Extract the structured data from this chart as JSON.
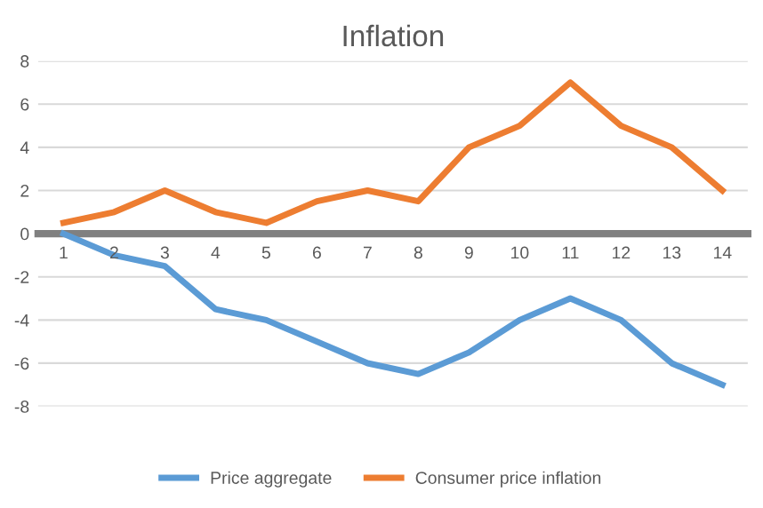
{
  "chart_data": {
    "type": "line",
    "title": "Inflation",
    "categories": [
      "1",
      "2",
      "3",
      "4",
      "5",
      "6",
      "7",
      "8",
      "9",
      "10",
      "11",
      "12",
      "13",
      "14"
    ],
    "series": [
      {
        "name": "Price aggregate",
        "color": "#5b9bd5",
        "values": [
          0,
          -1,
          -1.5,
          -3.5,
          -4,
          -5,
          -6,
          -6.5,
          -5.5,
          -4,
          -3,
          -4,
          -6,
          -7
        ]
      },
      {
        "name": "Consumer price inflation",
        "color": "#ed7d31",
        "values": [
          0.5,
          1,
          2,
          1,
          0.5,
          1.5,
          2,
          1.5,
          4,
          5,
          7,
          5,
          4,
          2
        ]
      }
    ],
    "ylim": [
      -8,
      8
    ],
    "yticks": [
      -8,
      -6,
      -4,
      -2,
      0,
      2,
      4,
      6,
      8
    ],
    "grid": "y",
    "legend": "bottom",
    "marker": "none",
    "line_style": "solid"
  }
}
